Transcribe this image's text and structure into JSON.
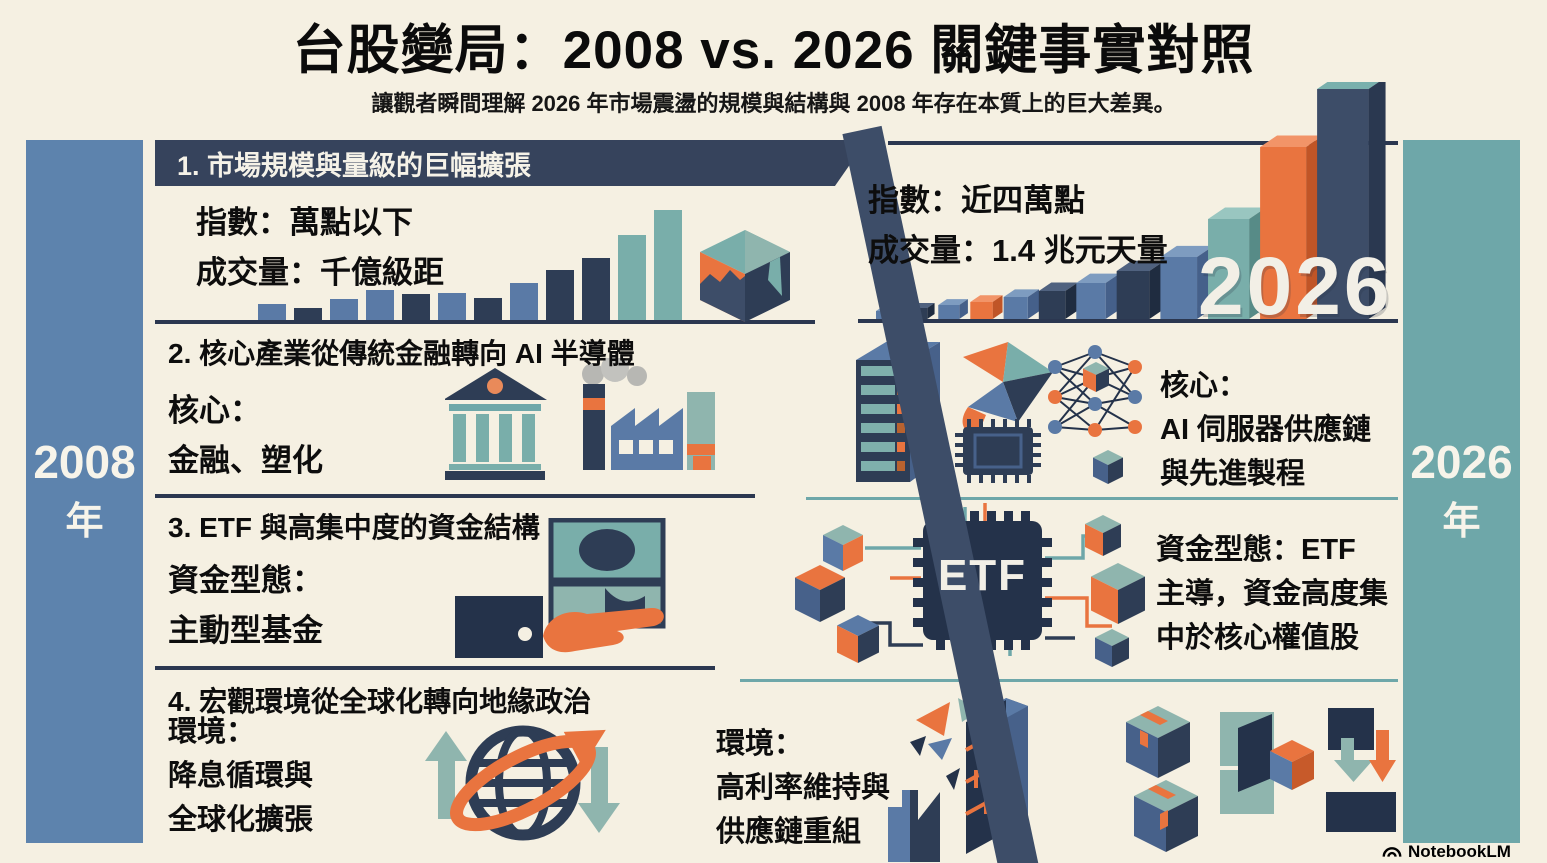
{
  "title": "台股變局：2008 vs. 2026 關鍵事實對照",
  "subtitle": "讓觀者瞬間理解 2026 年市場震盪的規模與結構與 2008 年存在本質上的巨大差異。",
  "left_year": {
    "year": "2008",
    "suffix": "年"
  },
  "right_year": {
    "year": "2026",
    "suffix": "年"
  },
  "sections": [
    {
      "header": "1.  市場規模與量級的巨幅擴張",
      "left": {
        "lines": [
          "指數：萬點以下",
          "成交量：千億級距"
        ]
      },
      "right": {
        "lines": [
          "指數：近四萬點",
          "成交量：1.4 兆元天量"
        ]
      }
    },
    {
      "header": "2.  核心產業從傳統金融轉向 AI 半導體",
      "left": {
        "lines": [
          "核心：",
          "金融、塑化"
        ]
      },
      "right": {
        "lines": [
          "核心：",
          "AI 伺服器供應鏈",
          "與先進製程"
        ]
      }
    },
    {
      "header": "3.  ETF 與高集中度的資金結構",
      "left": {
        "lines": [
          "資金型態：",
          "主動型基金"
        ]
      },
      "right": {
        "lines": [
          "資金型態：ETF",
          "主導，資金高度集",
          "中於核心權值股"
        ],
        "chip_label": "ETF"
      }
    },
    {
      "header": "4.  宏觀環境從全球化轉向地緣政治",
      "left": {
        "lines": [
          "環境：",
          "降息循環與",
          "全球化擴張"
        ]
      },
      "right": {
        "lines": [
          "環境：",
          "高利率維持與",
          "供應鏈重組"
        ]
      }
    }
  ],
  "watermark": {
    "label": "NotebookLM"
  },
  "colors": {
    "background": "#f5f0e2",
    "navy_divider": "#3d4d68",
    "header_band": "#36435c",
    "dark_navy": "#2e3d55",
    "slate_blue": "#5a7aa6",
    "sidebar_blue": "#5d83ad",
    "sidebar_teal": "#6ea7a9",
    "teal": "#79aeaa",
    "orange": "#e9743f",
    "text": "#0d0d0d"
  },
  "chart_data": [
    {
      "type": "bar",
      "panel": "2008",
      "description": "市場規模與量級示意長條圖（無軸線、無刻度，高度為相對示意值）",
      "values": [
        16,
        12,
        21,
        30,
        26,
        27,
        22,
        37,
        50,
        62,
        85,
        110
      ],
      "unit": "relative-height",
      "colors": [
        "#5a7aa6",
        "#2e3d55",
        "#5a7aa6",
        "#5a7aa6",
        "#2e3d55",
        "#5a7aa6",
        "#2e3d55",
        "#5a7aa6",
        "#2e3d55",
        "#2e3d55",
        "#79aeaa",
        "#79aeaa"
      ],
      "axes": false,
      "legend": false
    },
    {
      "type": "bar",
      "panel": "2026",
      "description": "指數與成交量爆發式成長示意 3D 長條圖（無軸線、無刻度，高度為相對示意值）",
      "values": [
        8,
        11,
        14,
        17,
        22,
        28,
        36,
        48,
        62,
        100,
        172,
        230
      ],
      "unit": "relative-height",
      "colors": [
        "#5a7aa6",
        "#2e3d55",
        "#5a7aa6",
        "#e9743f",
        "#5a7aa6",
        "#2e3d55",
        "#5a7aa6",
        "#2e3d55",
        "#5a7aa6",
        "#79aeaa",
        "#e9743f",
        "#3d4d68"
      ],
      "annotation": "2026",
      "axes": false,
      "legend": false
    }
  ]
}
